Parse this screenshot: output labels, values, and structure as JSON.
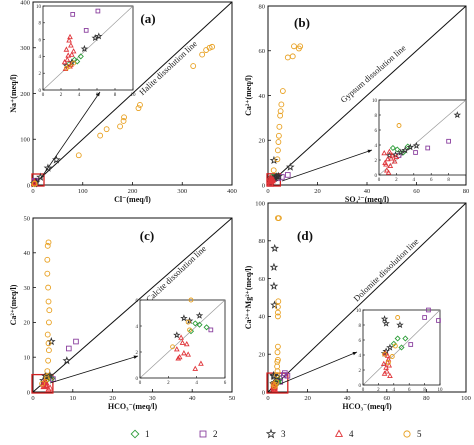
{
  "chart_data": [
    {
      "type": "scatter",
      "panel_label": "a",
      "xlabel": "Cl⁻(meq/l)",
      "ylabel": "Na⁺(meq/l)",
      "xlim": [
        0,
        400
      ],
      "ylim": [
        0,
        400
      ],
      "xticks": [
        0,
        100,
        200,
        300,
        400
      ],
      "yticks": [
        0,
        100,
        200,
        300,
        400
      ],
      "reference_line": {
        "label": "Halite dissolution line",
        "slope": 1
      },
      "inset": {
        "xlim": [
          0,
          10
        ],
        "ylim": [
          0,
          10
        ],
        "xticks": [
          0,
          2,
          4,
          6,
          8,
          10
        ],
        "yticks": [
          0,
          2,
          4,
          6,
          8,
          10
        ],
        "source_box": [
          0,
          15
        ]
      },
      "series": [
        {
          "name": "1",
          "values": [
            [
              3.5,
              3.6
            ],
            [
              4.2,
              4.0
            ],
            [
              2.9,
              3.1
            ],
            [
              3.8,
              3.4
            ]
          ]
        },
        {
          "name": "2",
          "values": [
            [
              6.1,
              9.4
            ],
            [
              3.3,
              9.0
            ],
            [
              4.8,
              7.1
            ]
          ]
        },
        {
          "name": "3",
          "values": [
            [
              6.2,
              6.4
            ],
            [
              5.8,
              6.2
            ],
            [
              4.6,
              4.9
            ],
            [
              3.2,
              3.3
            ],
            [
              2.6,
              2.9
            ],
            [
              15,
              17
            ],
            [
              30,
              37
            ],
            [
              47,
              55
            ]
          ]
        },
        {
          "name": "4",
          "values": [
            [
              2.5,
              2.5
            ],
            [
              3.0,
              2.8
            ],
            [
              2.7,
              3.6
            ],
            [
              3.2,
              4.2
            ],
            [
              2.6,
              4.8
            ],
            [
              3.1,
              5.3
            ],
            [
              2.9,
              5.9
            ],
            [
              3.0,
              6.3
            ],
            [
              2.4,
              3.3
            ],
            [
              3.4,
              4.6
            ],
            [
              2.8,
              4.1
            ],
            [
              3.1,
              3.0
            ]
          ]
        },
        {
          "name": "5",
          "values": [
            [
              2.6,
              2.6
            ],
            [
              2.9,
              2.8
            ],
            [
              3.4,
              3.2
            ],
            [
              92,
              65
            ],
            [
              135,
              108
            ],
            [
              148,
              122
            ],
            [
              175,
              128
            ],
            [
              182,
              140
            ],
            [
              183,
              148
            ],
            [
              212,
              168
            ],
            [
              215,
              175
            ],
            [
              322,
              260
            ],
            [
              340,
              285
            ],
            [
              348,
              295
            ],
            [
              355,
              300
            ],
            [
              360,
              302
            ]
          ]
        }
      ]
    },
    {
      "type": "scatter",
      "panel_label": "b",
      "xlabel": "SO₄²⁻(meq/l)",
      "ylabel": "Ca²⁺(meq/l)",
      "xlim": [
        0,
        80
      ],
      "ylim": [
        0,
        80
      ],
      "xticks": [
        0,
        20,
        40,
        60,
        80
      ],
      "yticks": [
        0,
        20,
        40,
        60,
        80
      ],
      "reference_line": {
        "label": "Gypsum dissolution line",
        "slope": 1
      },
      "inset": {
        "xlim": [
          0,
          10
        ],
        "ylim": [
          0,
          10
        ],
        "xticks": [
          0,
          2,
          4,
          6,
          8
        ],
        "yticks": [
          0,
          2,
          4,
          6,
          8,
          10
        ],
        "source_box": [
          0,
          5
        ]
      },
      "series": [
        {
          "name": "1",
          "values": [
            [
              2.1,
              3.4
            ],
            [
              2.8,
              3.0
            ],
            [
              1.6,
              3.6
            ],
            [
              3.3,
              3.8
            ]
          ]
        },
        {
          "name": "2",
          "values": [
            [
              2.3,
              2.6
            ],
            [
              4.2,
              3.0
            ],
            [
              5.6,
              3.6
            ],
            [
              8.0,
              4.5
            ]
          ]
        },
        {
          "name": "3",
          "values": [
            [
              3.0,
              3.3
            ],
            [
              2.5,
              3.0
            ],
            [
              1.9,
              2.7
            ],
            [
              1.2,
              2.6
            ],
            [
              3.6,
              3.7
            ],
            [
              4.3,
              3.9
            ],
            [
              2.4,
              11.0
            ],
            [
              9.0,
              8.0
            ]
          ]
        },
        {
          "name": "4",
          "values": [
            [
              0.9,
              0.6
            ],
            [
              1.3,
              1.2
            ],
            [
              0.7,
              1.6
            ],
            [
              1.0,
              2.1
            ],
            [
              1.5,
              2.6
            ],
            [
              0.6,
              2.9
            ],
            [
              1.2,
              3.1
            ],
            [
              1.8,
              1.8
            ],
            [
              1.1,
              0.3
            ],
            [
              0.8,
              1.4
            ],
            [
              1.4,
              2.2
            ],
            [
              2.0,
              2.4
            ]
          ]
        },
        {
          "name": "5",
          "values": [
            [
              2.3,
              6.6
            ],
            [
              3.8,
              11.5
            ],
            [
              4.0,
              15.5
            ],
            [
              4.2,
              19.2
            ],
            [
              4.4,
              22.0
            ],
            [
              4.6,
              26.0
            ],
            [
              4.9,
              31.0
            ],
            [
              5.1,
              33.0
            ],
            [
              5.4,
              36.0
            ],
            [
              6.0,
              42.0
            ],
            [
              8.0,
              57.0
            ],
            [
              10.0,
              57.5
            ],
            [
              10.5,
              62.0
            ],
            [
              12.5,
              61.0
            ],
            [
              13.0,
              62.0
            ]
          ]
        }
      ]
    },
    {
      "type": "scatter",
      "panel_label": "c",
      "xlabel": "HCO₃⁻(meq/l)",
      "ylabel": "Ca²⁺(meq/l)",
      "xlim": [
        0,
        50
      ],
      "ylim": [
        0,
        50
      ],
      "xticks": [
        0,
        10,
        20,
        30,
        40,
        50
      ],
      "yticks": [
        0,
        10,
        20,
        30,
        40,
        50
      ],
      "reference_line": {
        "label": "Calcite dissolution line",
        "slope": 1
      },
      "inset": {
        "xlim": [
          0,
          6
        ],
        "ylim": [
          0,
          6
        ],
        "xticks": [
          0,
          2,
          4,
          6
        ],
        "yticks": [
          0,
          2,
          4,
          6
        ],
        "source_box": [
          0,
          5
        ]
      },
      "series": [
        {
          "name": "1",
          "values": [
            [
              4.2,
              4.1
            ],
            [
              3.6,
              3.6
            ],
            [
              4.7,
              3.9
            ],
            [
              3.9,
              4.2
            ]
          ]
        },
        {
          "name": "2",
          "values": [
            [
              5.0,
              3.7
            ],
            [
              9.0,
              12.5
            ],
            [
              10.8,
              14.5
            ]
          ]
        },
        {
          "name": "3",
          "values": [
            [
              3.1,
              4.6
            ],
            [
              3.5,
              4.4
            ],
            [
              4.2,
              4.8
            ],
            [
              2.6,
              3.3
            ],
            [
              4.6,
              14.5
            ],
            [
              8.5,
              9.0
            ]
          ]
        },
        {
          "name": "4",
          "values": [
            [
              2.8,
              1.6
            ],
            [
              3.1,
              1.9
            ],
            [
              2.6,
              2.2
            ],
            [
              3.3,
              2.6
            ],
            [
              2.9,
              3.1
            ],
            [
              3.9,
              0.7
            ],
            [
              4.3,
              1.1
            ],
            [
              2.7,
              1.5
            ],
            [
              3.4,
              1.8
            ],
            [
              3.0,
              2.7
            ]
          ]
        },
        {
          "name": "5",
          "values": [
            [
              2.3,
              2.4
            ],
            [
              3.5,
              3.7
            ],
            [
              3.4,
              4.3
            ],
            [
              3.6,
              6.0
            ],
            [
              3.8,
              9.0
            ],
            [
              4.0,
              12.0
            ],
            [
              3.9,
              14.0
            ],
            [
              3.7,
              16.5
            ],
            [
              4.0,
              20.0
            ],
            [
              4.1,
              23.5
            ],
            [
              3.9,
              26.0
            ],
            [
              3.8,
              30.0
            ],
            [
              3.6,
              34.0
            ],
            [
              3.6,
              38.0
            ],
            [
              3.7,
              42.0
            ],
            [
              3.9,
              43.0
            ]
          ]
        }
      ]
    },
    {
      "type": "scatter",
      "panel_label": "d",
      "xlabel": "HCO₃⁻(meq/l)",
      "ylabel": "Ca²⁺+Mg²⁺(meq/l)",
      "xlim": [
        0,
        100
      ],
      "ylim": [
        0,
        100
      ],
      "xticks": [
        0,
        20,
        40,
        60,
        80,
        100
      ],
      "yticks": [
        0,
        20,
        40,
        60,
        80,
        100
      ],
      "reference_line": {
        "label": "Dolomite dissolution line",
        "slope": 1
      },
      "inset": {
        "xlim": [
          0,
          10
        ],
        "ylim": [
          0,
          10
        ],
        "xticks": [
          0,
          2,
          4,
          6,
          8,
          10
        ],
        "yticks": [
          0,
          2,
          4,
          6,
          8,
          10
        ],
        "source_box": [
          0,
          10
        ]
      },
      "series": [
        {
          "name": "1",
          "values": [
            [
              4.5,
              6.2
            ],
            [
              5.5,
              6.2
            ],
            [
              4.0,
              5.5
            ],
            [
              5.0,
              5.0
            ]
          ]
        },
        {
          "name": "2",
          "values": [
            [
              6.2,
              5.4
            ],
            [
              8.0,
              9.0
            ],
            [
              8.5,
              10.0
            ],
            [
              9.8,
              8.6
            ]
          ]
        },
        {
          "name": "3",
          "values": [
            [
              2.8,
              8.8
            ],
            [
              4.8,
              8.0
            ],
            [
              3.0,
              8.2
            ],
            [
              3.5,
              5.0
            ],
            [
              3.0,
              4.5
            ],
            [
              2.8,
              4.2
            ],
            [
              3.3,
              46.0
            ],
            [
              3.0,
              56.0
            ],
            [
              3.0,
              66.0
            ],
            [
              3.4,
              76.0
            ]
          ]
        },
        {
          "name": "4",
          "values": [
            [
              2.8,
              1.5
            ],
            [
              3.1,
              1.8
            ],
            [
              3.0,
              2.3
            ],
            [
              3.4,
              2.6
            ],
            [
              3.2,
              3.0
            ],
            [
              3.3,
              3.4
            ],
            [
              3.2,
              3.9
            ],
            [
              2.9,
              4.2
            ],
            [
              3.5,
              1.2
            ],
            [
              2.7,
              2.8
            ]
          ]
        },
        {
          "name": "5",
          "values": [
            [
              2.8,
              4.1
            ],
            [
              3.3,
              3.0
            ],
            [
              3.8,
              3.8
            ],
            [
              4.2,
              5.2
            ],
            [
              4.5,
              9.0
            ],
            [
              4.8,
              11.0
            ],
            [
              4.6,
              13.5
            ],
            [
              4.7,
              16.0
            ],
            [
              5.0,
              17.0
            ],
            [
              4.8,
              21.0
            ],
            [
              5.0,
              24.0
            ],
            [
              5.0,
              40.0
            ],
            [
              5.0,
              42.0
            ],
            [
              5.0,
              45.0
            ],
            [
              5.2,
              48.0
            ],
            [
              5.0,
              92.0
            ],
            [
              5.5,
              92.0
            ]
          ]
        }
      ]
    }
  ],
  "legend": {
    "placement": "bottom",
    "items": [
      {
        "label": "1",
        "marker": "diamond",
        "color": "#2e9e3a"
      },
      {
        "label": "2",
        "marker": "square",
        "color": "#8a3f9e"
      },
      {
        "label": "3",
        "marker": "star",
        "color": "#333333"
      },
      {
        "label": "4",
        "marker": "triangle",
        "color": "#e0353a"
      },
      {
        "label": "5",
        "marker": "circle",
        "color": "#e8a020"
      }
    ]
  },
  "colors": {
    "series": [
      "#2e9e3a",
      "#8a3f9e",
      "#333333",
      "#e0353a",
      "#e8a020"
    ],
    "highlight_box": "#d42020",
    "reference_line": "#111111",
    "inset_line": "#9a9a9a"
  }
}
